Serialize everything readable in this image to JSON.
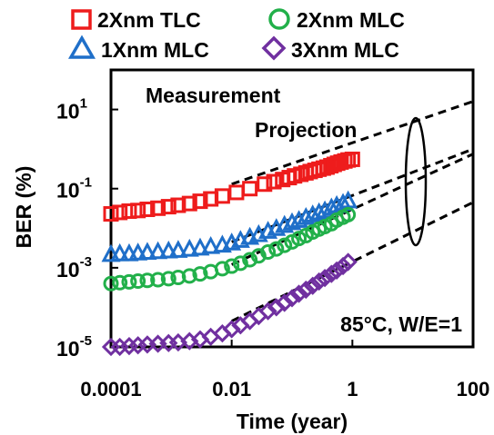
{
  "chart_data": {
    "type": "scatter",
    "xlabel": "Time (year)",
    "ylabel": "BER (%)",
    "x_scale": "log",
    "y_scale": "log",
    "xlim": [
      0.0001,
      100
    ],
    "ylim": [
      1e-05,
      100
    ],
    "x_ticks": [
      {
        "value": 0.0001,
        "label": "0.0001"
      },
      {
        "value": 0.01,
        "label": "0.01"
      },
      {
        "value": 1,
        "label": "1"
      },
      {
        "value": 100,
        "label": "100"
      }
    ],
    "y_ticks": [
      {
        "value": 10,
        "mant": "10",
        "exp": "1"
      },
      {
        "value": 0.1,
        "mant": "10",
        "exp": "-1"
      },
      {
        "value": 0.001,
        "mant": "10",
        "exp": "-3"
      },
      {
        "value": 1e-05,
        "mant": "10",
        "exp": "-5"
      }
    ],
    "legend_position": "top",
    "series": [
      {
        "name": "2Xnm TLC",
        "marker": "square",
        "color": "#ee1c1c",
        "x": [
          0.0001,
          0.00014,
          0.0002,
          0.00028,
          0.0004,
          0.0006,
          0.0009,
          0.0013,
          0.002,
          0.003,
          0.0045,
          0.007,
          0.012,
          0.02,
          0.035,
          0.05,
          0.07,
          0.09,
          0.11,
          0.14,
          0.17,
          0.2,
          0.24,
          0.28,
          0.33,
          0.38,
          0.44,
          0.5,
          0.57,
          0.65,
          0.75,
          0.85,
          1.0
        ],
        "y": [
          0.023,
          0.025,
          0.027,
          0.028,
          0.03,
          0.032,
          0.035,
          0.038,
          0.042,
          0.048,
          0.055,
          0.065,
          0.08,
          0.1,
          0.13,
          0.15,
          0.17,
          0.19,
          0.21,
          0.23,
          0.25,
          0.27,
          0.29,
          0.31,
          0.33,
          0.35,
          0.38,
          0.41,
          0.44,
          0.47,
          0.5,
          0.53,
          0.55
        ]
      },
      {
        "name": "1Xnm MLC",
        "marker": "triangle",
        "color": "#1f6fc9",
        "x": [
          0.0001,
          0.00014,
          0.0002,
          0.00028,
          0.0004,
          0.0006,
          0.0009,
          0.0013,
          0.002,
          0.003,
          0.0045,
          0.007,
          0.01,
          0.014,
          0.02,
          0.028,
          0.04,
          0.055,
          0.075,
          0.1,
          0.13,
          0.17,
          0.22,
          0.28,
          0.35,
          0.45,
          0.55,
          0.7,
          0.85
        ],
        "y": [
          0.0022,
          0.0023,
          0.0023,
          0.0024,
          0.0025,
          0.0026,
          0.0027,
          0.0028,
          0.003,
          0.0032,
          0.0035,
          0.0038,
          0.0043,
          0.005,
          0.006,
          0.007,
          0.0085,
          0.01,
          0.012,
          0.014,
          0.016,
          0.019,
          0.022,
          0.025,
          0.028,
          0.033,
          0.038,
          0.043,
          0.05
        ]
      },
      {
        "name": "2Xnm MLC",
        "marker": "circle",
        "color": "#22b04a",
        "x": [
          0.0001,
          0.00014,
          0.0002,
          0.00028,
          0.0004,
          0.0006,
          0.0009,
          0.0013,
          0.002,
          0.003,
          0.0045,
          0.007,
          0.01,
          0.014,
          0.02,
          0.028,
          0.04,
          0.055,
          0.075,
          0.1,
          0.13,
          0.17,
          0.22,
          0.28,
          0.35,
          0.45,
          0.55,
          0.7,
          0.85
        ],
        "y": [
          0.0004,
          0.00042,
          0.00044,
          0.00046,
          0.00048,
          0.0005,
          0.00053,
          0.00057,
          0.00062,
          0.0007,
          0.0008,
          0.00095,
          0.0011,
          0.0013,
          0.0016,
          0.002,
          0.0025,
          0.003,
          0.0037,
          0.0045,
          0.0055,
          0.0065,
          0.008,
          0.0095,
          0.011,
          0.013,
          0.016,
          0.019,
          0.022
        ]
      },
      {
        "name": "3Xnm MLC",
        "marker": "diamond",
        "color": "#7030a0",
        "x": [
          0.0001,
          0.00014,
          0.0002,
          0.00028,
          0.0004,
          0.0006,
          0.0009,
          0.0013,
          0.002,
          0.003,
          0.0045,
          0.007,
          0.01,
          0.014,
          0.02,
          0.028,
          0.04,
          0.055,
          0.075,
          0.1,
          0.13,
          0.17,
          0.22,
          0.28,
          0.35,
          0.45,
          0.55,
          0.7,
          0.85
        ],
        "y": [
          1e-05,
          1e-05,
          1.05e-05,
          1.1e-05,
          1.15e-05,
          1.2e-05,
          1.25e-05,
          1.3e-05,
          1.4e-05,
          1.55e-05,
          1.8e-05,
          2.2e-05,
          2.8e-05,
          3.5e-05,
          4.5e-05,
          6e-05,
          8e-05,
          0.0001,
          0.00013,
          0.00017,
          0.00022,
          0.00028,
          0.00035,
          0.00045,
          0.00055,
          0.0007,
          0.00085,
          0.0011,
          0.0014
        ]
      }
    ],
    "projection_lines": [
      {
        "x": [
          0.01,
          100
        ],
        "y": [
          0.13,
          16
        ]
      },
      {
        "x": [
          0.01,
          100
        ],
        "y": [
          0.0045,
          1.0
        ]
      },
      {
        "x": [
          0.01,
          100
        ],
        "y": [
          0.0012,
          0.75
        ]
      },
      {
        "x": [
          0.01,
          100
        ],
        "y": [
          4.5e-05,
          0.045
        ]
      }
    ],
    "annotations": {
      "measurement": "Measurement",
      "projection": "Projection",
      "condition": "85°C, W/E=1"
    }
  }
}
